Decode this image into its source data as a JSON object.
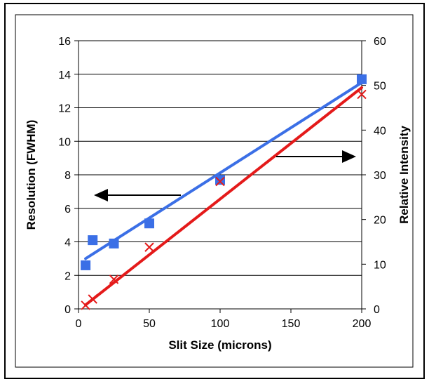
{
  "chart_data": {
    "type": "scatter",
    "title": "",
    "xlabel": "Slit Size (microns)",
    "ylabel": "Resolution (FWHM)",
    "y2label": "Relative Intensity",
    "xlim": [
      0,
      200
    ],
    "ylim": [
      0,
      16
    ],
    "y2lim": [
      0,
      60
    ],
    "x_ticks": [
      "0",
      "50",
      "100",
      "150",
      "200"
    ],
    "y_ticks": [
      "0",
      "2",
      "4",
      "6",
      "8",
      "10",
      "12",
      "14",
      "16"
    ],
    "y2_ticks": [
      "0",
      "10",
      "20",
      "30",
      "40",
      "50",
      "60"
    ],
    "grid": "horizontal",
    "legend": "none",
    "series": [
      {
        "axis": "left",
        "marker": "square",
        "color": "#3b6fe6",
        "points": [
          {
            "x": 5,
            "y": 2.6
          },
          {
            "x": 10,
            "y": 4.1
          },
          {
            "x": 25,
            "y": 3.9
          },
          {
            "x": 50,
            "y": 5.1
          },
          {
            "x": 100,
            "y": 7.7
          },
          {
            "x": 200,
            "y": 13.7
          }
        ],
        "trendline": {
          "x": [
            5,
            200
          ],
          "y": [
            3.0,
            13.5
          ]
        }
      },
      {
        "axis": "right",
        "marker": "x",
        "color": "#e41a1a",
        "points": [
          {
            "x": 5,
            "y": 0.8
          },
          {
            "x": 10,
            "y": 2.2
          },
          {
            "x": 25,
            "y": 6.6
          },
          {
            "x": 50,
            "y": 13.8
          },
          {
            "x": 100,
            "y": 28.5
          },
          {
            "x": 200,
            "y": 48.0
          }
        ],
        "trendline": {
          "x": [
            5,
            200
          ],
          "y": [
            0.9,
            49.5
          ]
        }
      }
    ],
    "annotations": [
      {
        "type": "arrow",
        "direction": "left",
        "refers_to": "left axis"
      },
      {
        "type": "arrow",
        "direction": "right",
        "refers_to": "right axis"
      }
    ]
  }
}
